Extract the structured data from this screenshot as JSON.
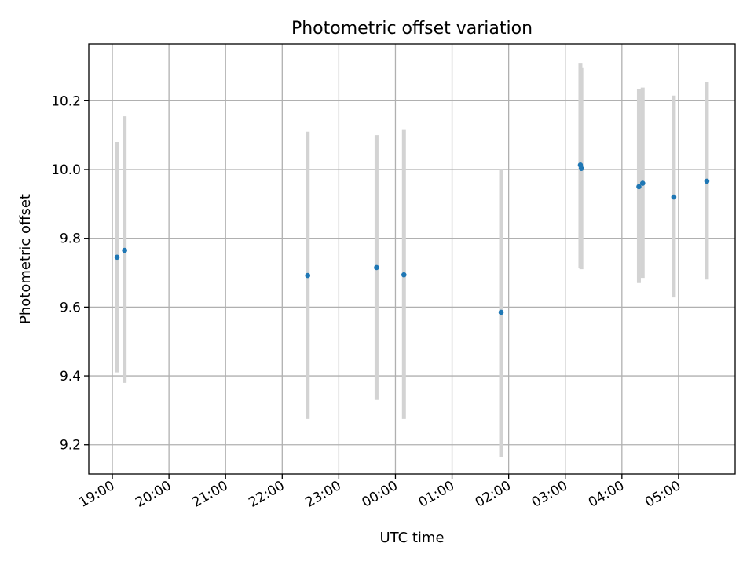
{
  "chart_data": {
    "type": "scatter",
    "title": "Photometric offset variation",
    "xlabel": "UTC time",
    "ylabel": "Photometric offset",
    "grid": true,
    "x_ticks": [
      "19:00",
      "20:00",
      "21:00",
      "22:00",
      "23:00",
      "00:00",
      "01:00",
      "02:00",
      "03:00",
      "04:00",
      "05:00"
    ],
    "y_ticks": [
      "9.2",
      "9.4",
      "9.6",
      "9.8",
      "10.0",
      "10.2"
    ],
    "ylim": [
      9.115,
      10.365
    ],
    "xlim": [
      "18:35",
      "06:00"
    ],
    "colors": {
      "point": "#1f77b4",
      "errorbar": "#d3d3d3"
    },
    "points": [
      {
        "time": "19:05",
        "y": 9.745,
        "low": 9.41,
        "high": 10.08
      },
      {
        "time": "19:13",
        "y": 9.765,
        "low": 9.38,
        "high": 10.155
      },
      {
        "time": "22:27",
        "y": 9.692,
        "low": 9.275,
        "high": 10.11
      },
      {
        "time": "23:40",
        "y": 9.715,
        "low": 9.33,
        "high": 10.1
      },
      {
        "time": "00:09",
        "y": 9.694,
        "low": 9.275,
        "high": 10.115
      },
      {
        "time": "01:52",
        "y": 9.585,
        "low": 9.165,
        "high": 10.0
      },
      {
        "time": "03:16",
        "y": 10.013,
        "low": 9.715,
        "high": 10.31
      },
      {
        "time": "03:17",
        "y": 10.003,
        "low": 9.71,
        "high": 10.295
      },
      {
        "time": "04:18",
        "y": 9.95,
        "low": 9.67,
        "high": 10.235
      },
      {
        "time": "04:22",
        "y": 9.96,
        "low": 9.685,
        "high": 10.238
      },
      {
        "time": "04:55",
        "y": 9.92,
        "low": 9.628,
        "high": 10.215
      },
      {
        "time": "05:30",
        "y": 9.966,
        "low": 9.68,
        "high": 10.255
      }
    ]
  }
}
